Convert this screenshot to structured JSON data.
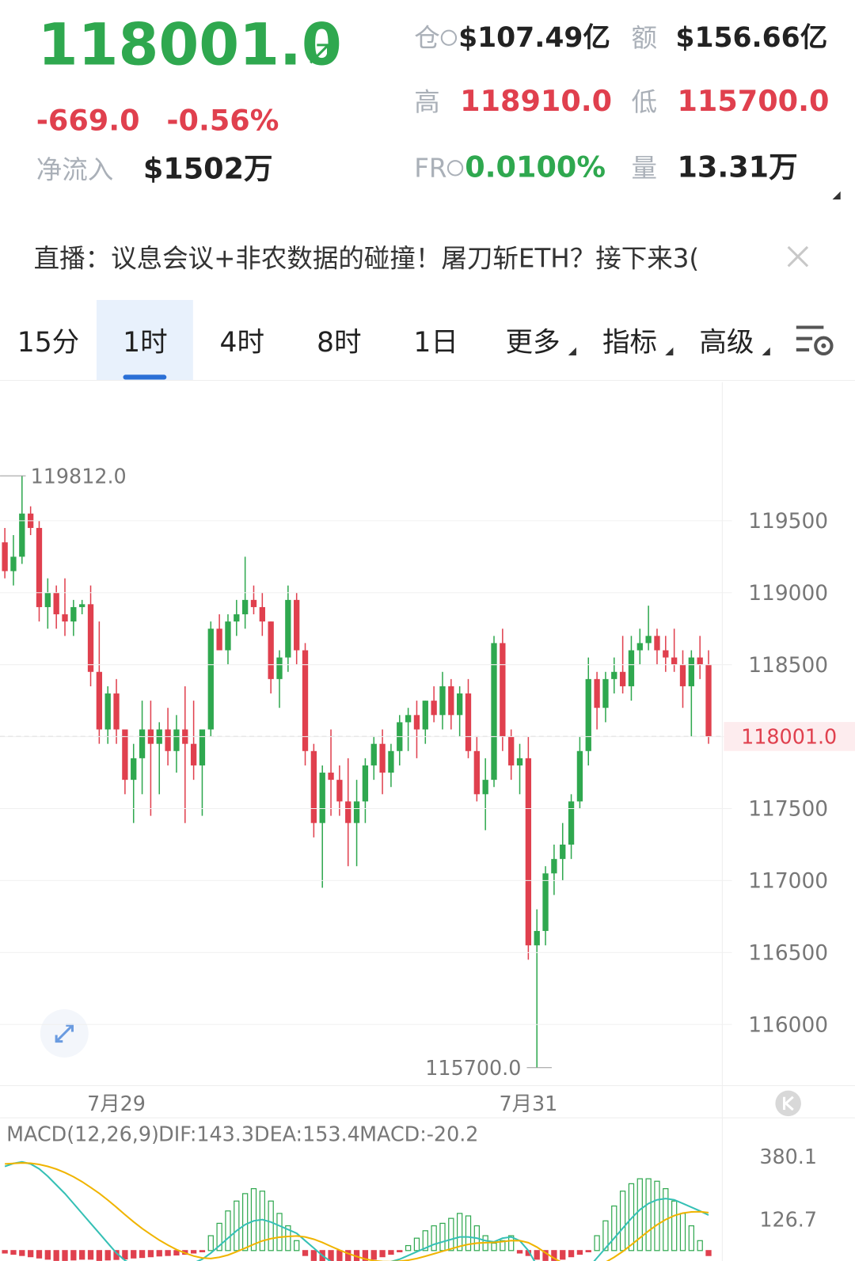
{
  "header": {
    "price": "118001.0",
    "change": "-669.0",
    "change_pct": "-0.56%",
    "net_inflow_label": "净流入",
    "net_inflow": "$1502万",
    "open_interest_label": "仓",
    "open_interest": "$107.49亿",
    "turnover_label": "额",
    "turnover": "$156.66亿",
    "high_label": "高",
    "high": "118910.0",
    "low_label": "低",
    "low": "115700.0",
    "funding_label": "FR",
    "funding": "0.0100%",
    "volume_label": "量",
    "volume": "13.31万"
  },
  "banner": {
    "text": "直播：议息会议+非农数据的碰撞！屠刀斩ETH？接下来3("
  },
  "tabs": [
    "15分",
    "1时",
    "4时",
    "8时",
    "1日",
    "更多",
    "指标",
    "高级"
  ],
  "active_tab": 1,
  "chart_data": [
    {
      "type": "candlestick",
      "up_color": "#2fa84f",
      "down_color": "#e0404e",
      "grid": true,
      "ylim": [
        115575,
        120464
      ],
      "yticks": [
        116000,
        116500,
        117000,
        117500,
        118000,
        118500,
        119000,
        119500
      ],
      "categories": [
        null,
        null,
        null,
        null,
        null,
        null,
        null,
        null,
        null,
        null,
        null,
        null,
        null,
        "7月29",
        null,
        null,
        null,
        null,
        null,
        null,
        null,
        null,
        null,
        null,
        null,
        null,
        null,
        null,
        null,
        null,
        null,
        null,
        null,
        null,
        null,
        null,
        null,
        null,
        null,
        null,
        null,
        null,
        null,
        null,
        null,
        null,
        null,
        null,
        null,
        null,
        null,
        null,
        null,
        null,
        null,
        null,
        null,
        null,
        null,
        null,
        null,
        "7月31",
        null,
        null,
        null,
        null,
        null,
        null,
        null,
        null,
        null,
        null,
        null,
        null,
        null,
        null,
        null,
        null,
        null,
        null,
        null,
        null,
        null
      ],
      "open": [
        119350,
        119150,
        119250,
        119550,
        119450,
        118900,
        119000,
        118850,
        118800,
        118900,
        118920,
        118450,
        118050,
        118300,
        118050,
        117700,
        117850,
        118050,
        117950,
        118050,
        117900,
        118050,
        117950,
        117800,
        118050,
        118750,
        118600,
        118800,
        118850,
        118950,
        118900,
        118800,
        118400,
        118550,
        118950,
        118600,
        117900,
        117400,
        117750,
        117700,
        117550,
        117400,
        117550,
        117800,
        117950,
        117750,
        117900,
        118100,
        118150,
        118050,
        118250,
        118150,
        118350,
        118150,
        118300,
        117900,
        117600,
        117700,
        118650,
        118000,
        117800,
        117850,
        116550,
        116650,
        117050,
        117150,
        117250,
        117550,
        117900,
        118400,
        118200,
        118400,
        118450,
        118350,
        118600,
        118650,
        118700,
        118600,
        118550,
        118500,
        118350,
        118550,
        118500
      ],
      "high": [
        119450,
        119400,
        119812,
        119600,
        119500,
        119100,
        119050,
        119100,
        118950,
        118950,
        119050,
        118800,
        118350,
        118400,
        118050,
        117950,
        118250,
        118250,
        118100,
        118200,
        118150,
        118350,
        118250,
        118050,
        118800,
        118850,
        118850,
        118950,
        119250,
        119050,
        119000,
        118800,
        118600,
        119050,
        119000,
        118650,
        117950,
        117800,
        118050,
        117800,
        117850,
        117700,
        117850,
        118000,
        118050,
        117950,
        118150,
        118200,
        118250,
        118250,
        118350,
        118450,
        118400,
        118350,
        118400,
        118000,
        117850,
        118700,
        118750,
        118050,
        117950,
        118000,
        116800,
        117100,
        117250,
        117400,
        117600,
        118000,
        118550,
        118450,
        118450,
        118550,
        118700,
        118700,
        118750,
        118910,
        118750,
        118700,
        118750,
        118600,
        118600,
        118700,
        118600
      ],
      "low": [
        119100,
        119050,
        119200,
        119400,
        118800,
        118750,
        118750,
        118700,
        118700,
        118850,
        118350,
        117950,
        117950,
        117950,
        117600,
        117400,
        117600,
        117450,
        117600,
        117800,
        117750,
        117400,
        117700,
        117450,
        118000,
        118600,
        118500,
        118700,
        118750,
        118850,
        118700,
        118300,
        118200,
        118450,
        118500,
        117800,
        117300,
        116950,
        117450,
        117450,
        117100,
        117100,
        117400,
        117700,
        117600,
        117650,
        117800,
        117900,
        117850,
        117950,
        118100,
        118050,
        118050,
        118000,
        117850,
        117550,
        117350,
        117650,
        117900,
        117700,
        117600,
        116450,
        115700,
        116550,
        116900,
        117000,
        117150,
        117500,
        117800,
        118050,
        118100,
        118300,
        118300,
        118250,
        118500,
        118600,
        118500,
        118450,
        118450,
        118200,
        118000,
        118400,
        117950
      ],
      "close": [
        119150,
        119250,
        119550,
        119450,
        118900,
        119000,
        118850,
        118800,
        118900,
        118920,
        118450,
        118050,
        118300,
        118050,
        117700,
        117850,
        118050,
        117950,
        118050,
        117900,
        118050,
        117950,
        117800,
        118050,
        118750,
        118600,
        118800,
        118850,
        118950,
        118900,
        118800,
        118400,
        118550,
        118950,
        118600,
        117900,
        117400,
        117750,
        117700,
        117550,
        117400,
        117550,
        117800,
        117950,
        117750,
        117900,
        118100,
        118150,
        118050,
        118250,
        118150,
        118350,
        118150,
        118300,
        117900,
        117600,
        117700,
        118650,
        118000,
        117800,
        117850,
        116550,
        116650,
        117050,
        117150,
        117250,
        117550,
        117900,
        118400,
        118200,
        118400,
        118450,
        118350,
        118600,
        118650,
        118700,
        118600,
        118550,
        118500,
        118350,
        118550,
        118500,
        118001
      ],
      "max_marker": {
        "value": 119812,
        "label": "119812.0"
      },
      "min_marker": {
        "value": 115700,
        "label": "115700.0"
      },
      "last_price": {
        "value": 118001,
        "label": "118001.0"
      }
    },
    {
      "type": "macd",
      "title": "MACD(12,26,9)",
      "dif_label": "DIF:143.3",
      "dea_label": "DEA:153.4",
      "macd_label": "MACD:-20.2",
      "dif_color": "#35c0b5",
      "dea_color": "#f0b400",
      "macd_color": "#d040a0",
      "up_color": "#2fa84f",
      "down_color": "#e0404e",
      "grid": false,
      "ylim": [
        -42.2,
        529.6
      ],
      "yticks": [
        126.7,
        380.1
      ],
      "histogram": [
        -10,
        -15,
        -20,
        -25,
        -30,
        -35,
        -40,
        -40,
        -38,
        -35,
        -35,
        -40,
        -38,
        -36,
        -34,
        -30,
        -28,
        -25,
        -22,
        -20,
        -18,
        -15,
        -10,
        -5,
        60,
        110,
        160,
        200,
        230,
        250,
        240,
        200,
        150,
        100,
        40,
        -20,
        -40,
        -50,
        -55,
        -55,
        -50,
        -45,
        -40,
        -35,
        -25,
        -15,
        -5,
        20,
        50,
        80,
        100,
        110,
        130,
        150,
        140,
        100,
        60,
        30,
        40,
        60,
        -10,
        -20,
        -35,
        -40,
        -40,
        -35,
        -25,
        -15,
        -5,
        60,
        120,
        180,
        240,
        270,
        290,
        290,
        280,
        250,
        200,
        150,
        100,
        40,
        -20.2
      ],
      "dif": [
        340,
        352,
        358,
        350,
        330,
        300,
        265,
        230,
        190,
        150,
        110,
        70,
        30,
        -10,
        -40,
        -60,
        -70,
        -75,
        -75,
        -70,
        -65,
        -60,
        -50,
        -35,
        -10,
        20,
        50,
        80,
        105,
        120,
        125,
        115,
        100,
        85,
        70,
        40,
        10,
        -20,
        -45,
        -60,
        -70,
        -72,
        -70,
        -65,
        -55,
        -45,
        -35,
        -20,
        -5,
        10,
        25,
        35,
        45,
        55,
        55,
        50,
        40,
        35,
        50,
        55,
        40,
        0,
        -60,
        -100,
        -120,
        -125,
        -115,
        -95,
        -70,
        -30,
        10,
        50,
        90,
        130,
        165,
        190,
        205,
        210,
        205,
        190,
        175,
        160,
        143.3
      ],
      "dea": [
        350,
        352,
        354,
        353,
        348,
        340,
        329,
        315,
        298,
        278,
        255,
        231,
        204,
        175,
        145,
        116,
        89,
        65,
        42,
        22,
        4,
        -10,
        -22,
        -30,
        -32,
        -27,
        -18,
        -5,
        10,
        25,
        39,
        48,
        54,
        57,
        59,
        55,
        46,
        33,
        17,
        2,
        -12,
        -24,
        -34,
        -41,
        -44,
        -45,
        -43,
        -39,
        -32,
        -23,
        -13,
        -3,
        7,
        17,
        25,
        30,
        32,
        33,
        36,
        40,
        40,
        32,
        14,
        -9,
        -31,
        -50,
        -63,
        -69,
        -69,
        -61,
        -47,
        -27,
        -4,
        23,
        51,
        79,
        104,
        125,
        141,
        151,
        156,
        157,
        153.4
      ]
    }
  ]
}
